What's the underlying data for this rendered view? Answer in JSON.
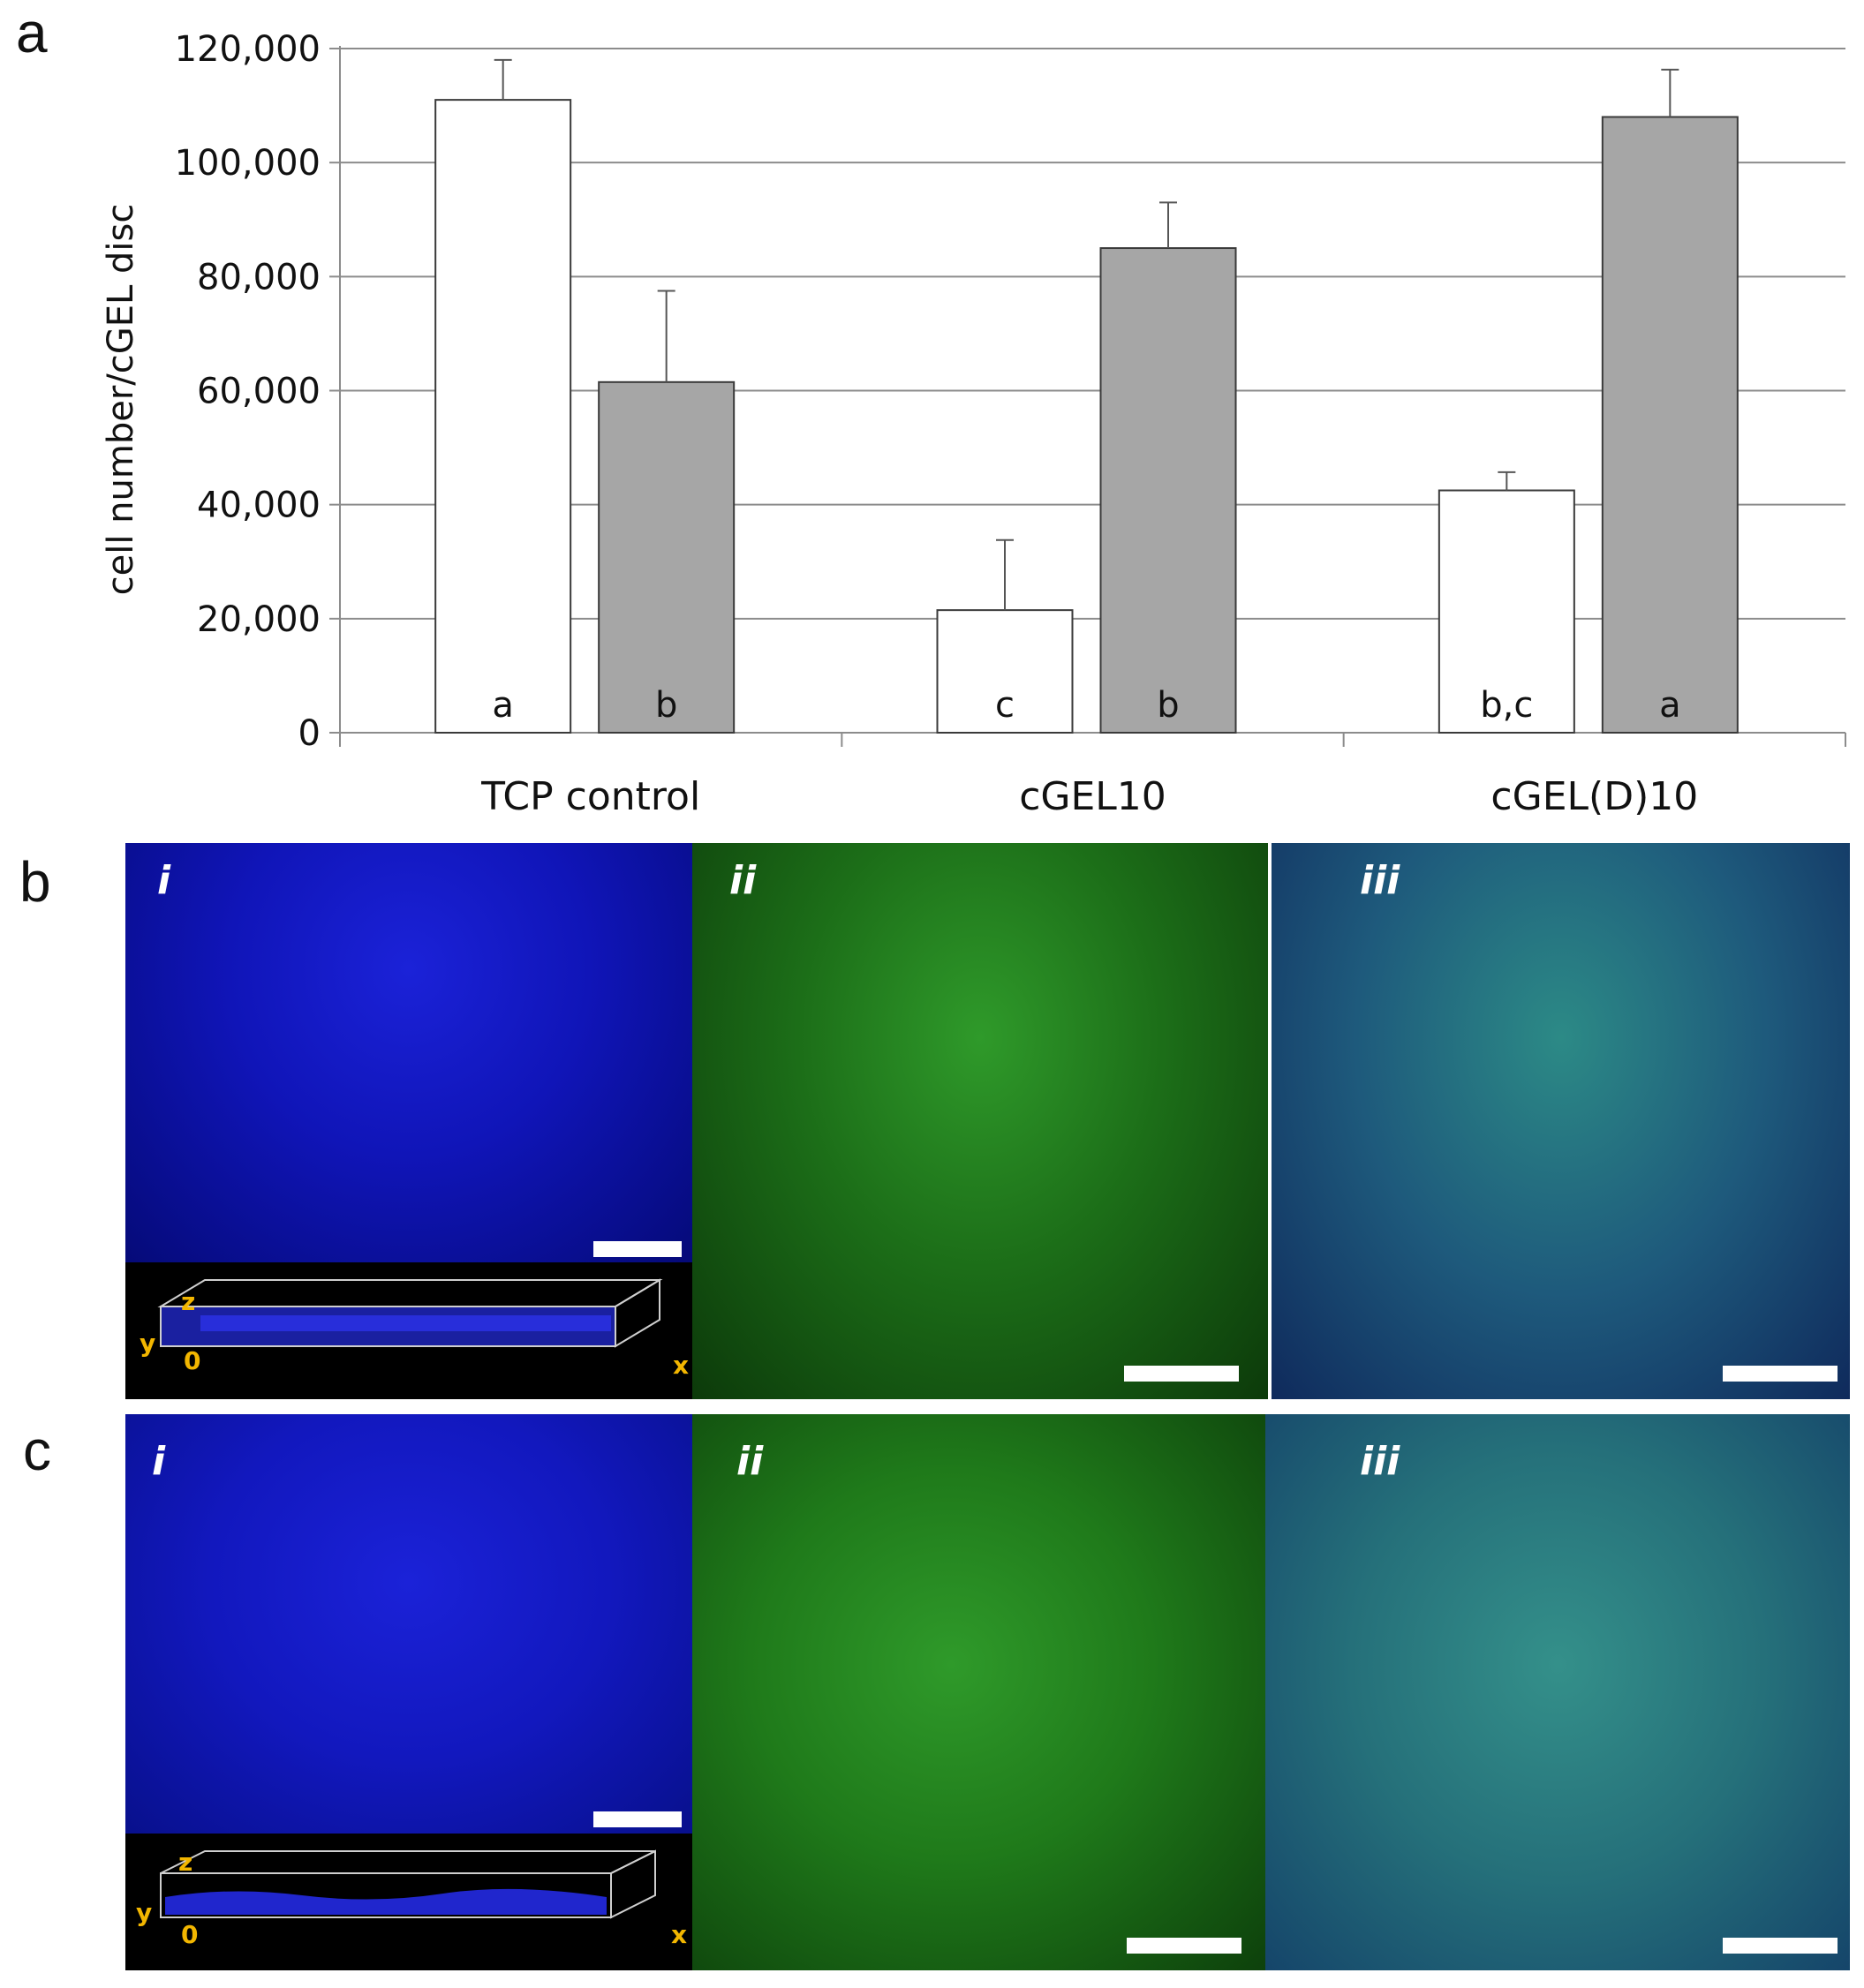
{
  "panels": {
    "a": "a",
    "b": "b",
    "c": "c"
  },
  "chart_data": {
    "type": "bar",
    "ylabel": "cell number/cGEL disc",
    "xlabel": "",
    "ylim": [
      0,
      120000
    ],
    "yticks": [
      "0",
      "20,000",
      "40,000",
      "60,000",
      "80,000",
      "100,000",
      "120,000"
    ],
    "ytick_values": [
      0,
      20000,
      40000,
      60000,
      80000,
      100000,
      120000
    ],
    "grid": true,
    "categories": [
      "TCP control",
      "cGEL10",
      "cGEL(D)10"
    ],
    "series": [
      {
        "color": "#ffffff",
        "values": [
          111000,
          21500,
          42500
        ],
        "errors": [
          7000,
          12300,
          3200
        ],
        "letters": [
          "a",
          "c",
          "b,c"
        ]
      },
      {
        "color": "#a6a6a6",
        "values": [
          61500,
          85000,
          108000
        ],
        "errors": [
          16000,
          8000,
          8300
        ],
        "letters": [
          "b",
          "b",
          "a"
        ]
      }
    ]
  },
  "micrographs": {
    "b": [
      {
        "label": "i",
        "color": "#1a1fd6"
      },
      {
        "label": "ii",
        "color": "#2fae2a"
      },
      {
        "label": "iii",
        "color": "#2b7f8a"
      }
    ],
    "c": [
      {
        "label": "i",
        "color": "#1a1fd6"
      },
      {
        "label": "ii",
        "color": "#2fae2a"
      },
      {
        "label": "iii",
        "color": "#2b7f8a"
      }
    ]
  },
  "inset_axes": {
    "z": "z",
    "y": "y",
    "origin": "0",
    "x": "x"
  }
}
